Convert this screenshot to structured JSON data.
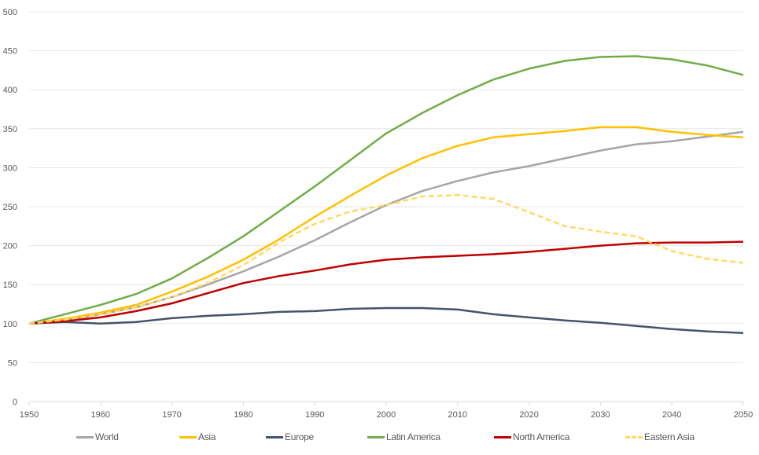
{
  "chart_data": {
    "type": "line",
    "title": "",
    "xlabel": "",
    "ylabel": "",
    "xlim": [
      1950,
      2050
    ],
    "ylim": [
      0,
      500
    ],
    "x_ticks": [
      1950,
      1960,
      1970,
      1980,
      1990,
      2000,
      2010,
      2020,
      2030,
      2040,
      2050
    ],
    "y_ticks": [
      0,
      50,
      100,
      150,
      200,
      250,
      300,
      350,
      400,
      450,
      500
    ],
    "grid": "horizontal",
    "legend_position": "bottom",
    "x": [
      1950,
      1955,
      1960,
      1965,
      1970,
      1975,
      1980,
      1985,
      1990,
      1995,
      2000,
      2005,
      2010,
      2015,
      2020,
      2025,
      2030,
      2035,
      2040,
      2045,
      2050
    ],
    "series": [
      {
        "name": "World",
        "color": "#a6a6a6",
        "dashed": false,
        "values": [
          100,
          104,
          112,
          121,
          134,
          150,
          167,
          186,
          207,
          230,
          252,
          270,
          283,
          294,
          302,
          312,
          322,
          330,
          334,
          340,
          346
        ]
      },
      {
        "name": "Asia",
        "color": "#ffc000",
        "dashed": false,
        "values": [
          100,
          106,
          114,
          124,
          141,
          160,
          182,
          208,
          237,
          264,
          290,
          312,
          328,
          339,
          343,
          347,
          352,
          352,
          346,
          342,
          339
        ]
      },
      {
        "name": "Europe",
        "color": "#44546a",
        "dashed": false,
        "values": [
          100,
          102,
          100,
          102,
          107,
          110,
          112,
          115,
          116,
          119,
          120,
          120,
          118,
          112,
          108,
          104,
          101,
          97,
          93,
          90,
          88
        ]
      },
      {
        "name": "Latin America",
        "color": "#70ad47",
        "dashed": false,
        "values": [
          100,
          112,
          124,
          138,
          158,
          184,
          212,
          244,
          276,
          310,
          344,
          370,
          393,
          413,
          427,
          437,
          442,
          443,
          439,
          431,
          419
        ]
      },
      {
        "name": "North America",
        "color": "#c00000",
        "dashed": false,
        "values": [
          100,
          103,
          108,
          116,
          126,
          139,
          152,
          161,
          168,
          176,
          182,
          185,
          187,
          189,
          192,
          196,
          200,
          203,
          204,
          204,
          205
        ]
      },
      {
        "name": "Eastern Asia",
        "color": "#ffd966",
        "dashed": true,
        "values": [
          100,
          105,
          112,
          121,
          134,
          152,
          175,
          204,
          228,
          244,
          252,
          263,
          265,
          260,
          243,
          225,
          218,
          212,
          193,
          183,
          178
        ]
      }
    ]
  }
}
